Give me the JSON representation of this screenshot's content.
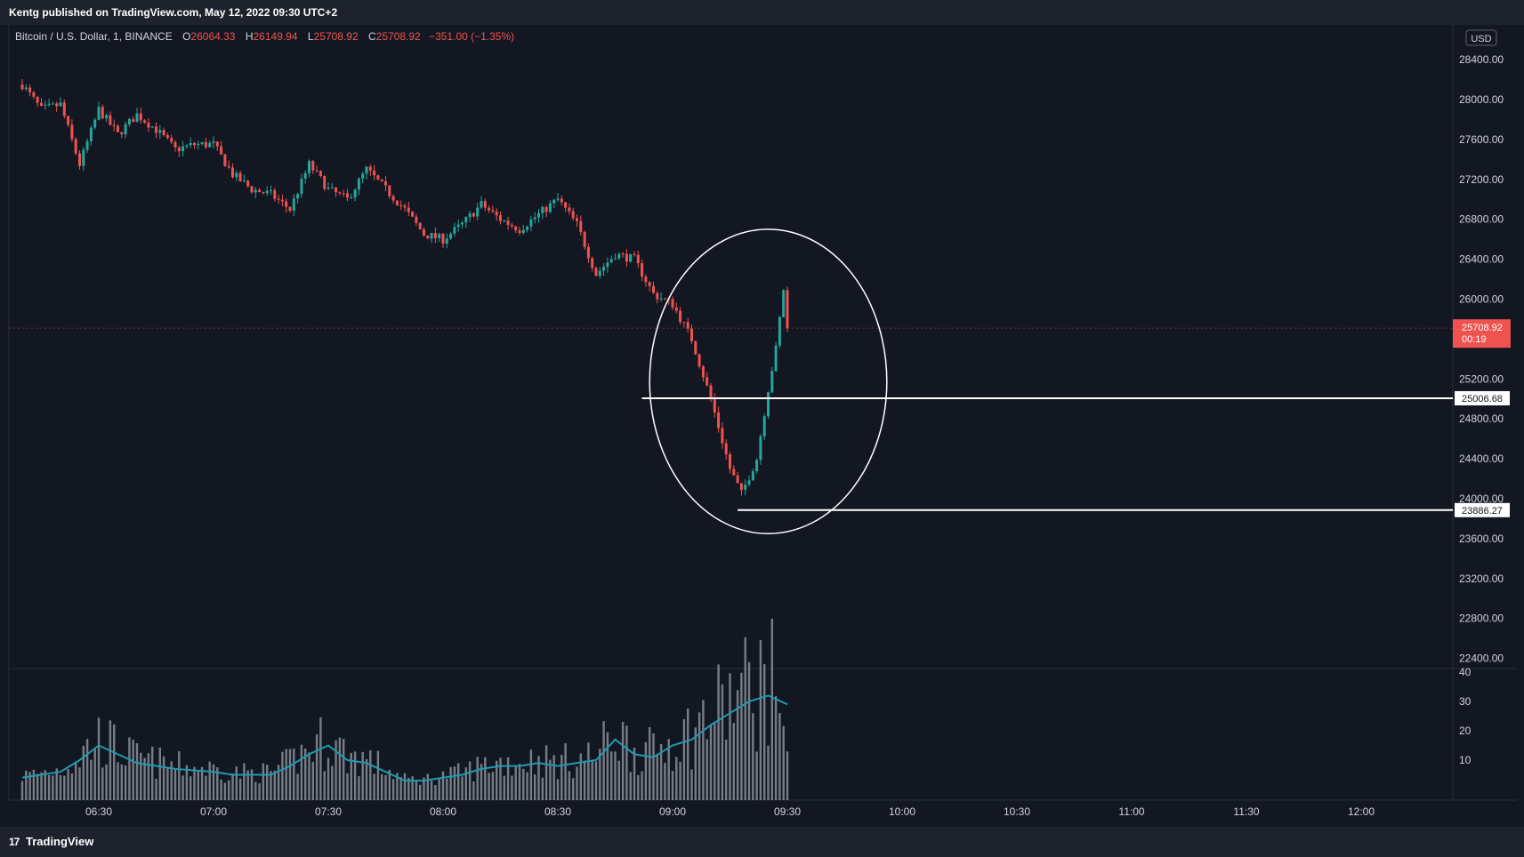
{
  "header": {
    "published": "Kentg published on TradingView.com, May 12, 2022 09:30 UTC+2"
  },
  "footer": {
    "brand": "TradingView",
    "logo_text": "17"
  },
  "legend": {
    "symbol": "Bitcoin / U.S. Dollar, 1, BINANCE",
    "o_label": "O",
    "o_value": "26064.33",
    "h_label": "H",
    "h_value": "26149.94",
    "l_label": "L",
    "l_value": "25708.92",
    "c_label": "C",
    "c_value": "25708.92",
    "change": "−351.00 (−1.35%)"
  },
  "colors": {
    "up": "#26a69a",
    "down": "#ef5350",
    "background": "#131722",
    "grid_text": "#d1d4dc",
    "volume": "#9aa0a8",
    "volume_ma": "#1e9bb0"
  },
  "chart_data": {
    "type": "candlestick",
    "currency": "USD",
    "price_axis": {
      "ticks": [
        "28800.00",
        "28400.00",
        "28000.00",
        "27600.00",
        "27200.00",
        "26800.00",
        "26400.00",
        "26000.00",
        "25600.00",
        "25200.00",
        "24800.00",
        "24400.00",
        "24000.00",
        "23600.00",
        "23200.00",
        "22800.00",
        "22400.00"
      ]
    },
    "time_axis": {
      "ticks": [
        "06:30",
        "07:00",
        "07:30",
        "08:00",
        "08:30",
        "09:00",
        "09:30",
        "10:00",
        "10:30",
        "11:00",
        "11:30",
        "12:00"
      ]
    },
    "volume_axis": {
      "ticks": [
        "40",
        "30",
        "20",
        "10"
      ]
    },
    "last_price": {
      "value": "25708.92",
      "countdown": "00:19"
    },
    "horizontal_lines": [
      {
        "price": 25006.68,
        "label": "25006.68",
        "from_time": "08:52"
      },
      {
        "price": 23886.27,
        "label": "23886.27",
        "from_time": "09:17"
      }
    ],
    "annotation_ellipse": {
      "from_time": "08:54",
      "to_time": "09:56",
      "price_top": 26700,
      "price_bottom": 23650
    },
    "price_path": [
      [
        "06:10",
        28150
      ],
      [
        "06:15",
        27900
      ],
      [
        "06:20",
        27950
      ],
      [
        "06:25",
        27350
      ],
      [
        "06:30",
        27900
      ],
      [
        "06:35",
        27650
      ],
      [
        "06:40",
        27850
      ],
      [
        "06:45",
        27700
      ],
      [
        "06:50",
        27500
      ],
      [
        "06:55",
        27550
      ],
      [
        "07:00",
        27550
      ],
      [
        "07:05",
        27250
      ],
      [
        "07:10",
        27100
      ],
      [
        "07:15",
        27050
      ],
      [
        "07:20",
        26900
      ],
      [
        "07:25",
        27350
      ],
      [
        "07:30",
        27100
      ],
      [
        "07:35",
        27000
      ],
      [
        "07:40",
        27300
      ],
      [
        "07:45",
        27100
      ],
      [
        "07:50",
        26900
      ],
      [
        "07:55",
        26650
      ],
      [
        "08:00",
        26600
      ],
      [
        "08:05",
        26750
      ],
      [
        "08:10",
        26950
      ],
      [
        "08:15",
        26800
      ],
      [
        "08:20",
        26700
      ],
      [
        "08:25",
        26850
      ],
      [
        "08:30",
        27000
      ],
      [
        "08:35",
        26750
      ],
      [
        "08:40",
        26250
      ],
      [
        "08:45",
        26450
      ],
      [
        "08:50",
        26400
      ],
      [
        "08:55",
        26050
      ],
      [
        "09:00",
        25950
      ],
      [
        "09:05",
        25600
      ],
      [
        "09:10",
        25000
      ],
      [
        "09:15",
        24300
      ],
      [
        "09:18",
        24050
      ],
      [
        "09:22",
        24400
      ],
      [
        "09:25",
        25100
      ],
      [
        "09:27",
        25500
      ],
      [
        "09:29",
        26100
      ],
      [
        "09:30",
        25709
      ]
    ],
    "volume_path": [
      [
        "06:10",
        4
      ],
      [
        "06:20",
        6
      ],
      [
        "06:25",
        10
      ],
      [
        "06:30",
        15
      ],
      [
        "06:35",
        12
      ],
      [
        "06:40",
        9
      ],
      [
        "06:50",
        7
      ],
      [
        "07:00",
        6
      ],
      [
        "07:05",
        5
      ],
      [
        "07:10",
        5
      ],
      [
        "07:15",
        5
      ],
      [
        "07:20",
        8
      ],
      [
        "07:25",
        12
      ],
      [
        "07:30",
        15
      ],
      [
        "07:35",
        10
      ],
      [
        "07:40",
        9
      ],
      [
        "07:45",
        6
      ],
      [
        "07:50",
        3
      ],
      [
        "07:55",
        3
      ],
      [
        "08:00",
        4
      ],
      [
        "08:05",
        5
      ],
      [
        "08:10",
        7
      ],
      [
        "08:15",
        8
      ],
      [
        "08:20",
        8
      ],
      [
        "08:25",
        9
      ],
      [
        "08:30",
        8
      ],
      [
        "08:35",
        9
      ],
      [
        "08:40",
        10
      ],
      [
        "08:45",
        17
      ],
      [
        "08:50",
        12
      ],
      [
        "08:55",
        11
      ],
      [
        "09:00",
        15
      ],
      [
        "09:05",
        17
      ],
      [
        "09:10",
        22
      ],
      [
        "09:15",
        26
      ],
      [
        "09:20",
        30
      ],
      [
        "09:25",
        32
      ],
      [
        "09:30",
        29
      ]
    ]
  }
}
